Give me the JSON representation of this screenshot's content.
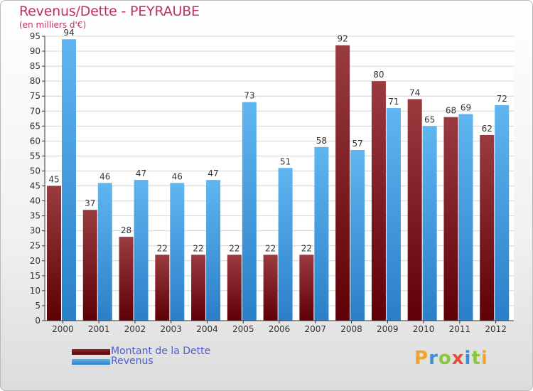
{
  "header": {
    "title": "Revenus/Dette - PEYRAUBE",
    "subtitle": "(en milliers d'€)"
  },
  "legend": {
    "items": [
      {
        "label": "Montant de la Dette",
        "color": "#7a0f17"
      },
      {
        "label": "Revenus",
        "color": "#3d9be2"
      }
    ]
  },
  "logo": {
    "letters": [
      "P",
      "r",
      "o",
      "x",
      "i",
      "t",
      "i"
    ],
    "colors": [
      "#f2a32b",
      "#3a8fd9",
      "#8cc63f",
      "#e94b3c",
      "#3a8fd9",
      "#8cc63f",
      "#f2a32b"
    ]
  },
  "chart_data": {
    "type": "bar",
    "title": "Revenus/Dette - PEYRAUBE",
    "subtitle": "(en milliers d'€)",
    "categories": [
      "2000",
      "2001",
      "2002",
      "2003",
      "2004",
      "2005",
      "2006",
      "2007",
      "2008",
      "2009",
      "2010",
      "2011",
      "2012"
    ],
    "series": [
      {
        "name": "Montant de la Dette",
        "color": "#7a0f17",
        "values": [
          45,
          37,
          28,
          22,
          22,
          22,
          22,
          22,
          92,
          80,
          74,
          68,
          62
        ]
      },
      {
        "name": "Revenus",
        "color": "#3d9be2",
        "values": [
          94,
          46,
          47,
          46,
          47,
          73,
          51,
          58,
          57,
          71,
          65,
          69,
          72
        ]
      }
    ],
    "ylim": [
      0,
      95
    ],
    "yticks": [
      0,
      5,
      10,
      15,
      20,
      25,
      30,
      35,
      40,
      45,
      50,
      55,
      60,
      65,
      70,
      75,
      80,
      85,
      90,
      95
    ],
    "grid": true,
    "legend_position": "bottom-left"
  }
}
